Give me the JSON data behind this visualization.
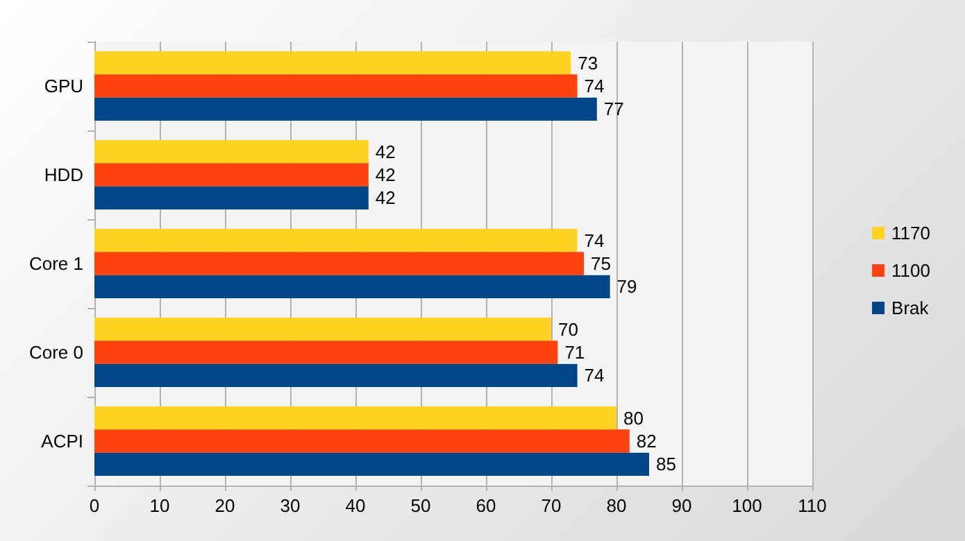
{
  "chart_data": {
    "type": "bar",
    "orientation": "horizontal",
    "categories": [
      "GPU",
      "HDD",
      "Core 1",
      "Core 0",
      "ACPI"
    ],
    "series": [
      {
        "name": "1170",
        "color": "#ffd320",
        "values": [
          73,
          42,
          74,
          70,
          80
        ]
      },
      {
        "name": "1100",
        "color": "#ff420e",
        "values": [
          74,
          42,
          75,
          71,
          82
        ]
      },
      {
        "name": "Brak",
        "color": "#004586",
        "values": [
          77,
          42,
          79,
          74,
          85
        ]
      }
    ],
    "xlim": [
      0,
      110
    ],
    "xticks": [
      0,
      10,
      20,
      30,
      40,
      50,
      60,
      70,
      80,
      90,
      100,
      110
    ],
    "grid": "x",
    "legend": "right",
    "data_labels": true
  }
}
